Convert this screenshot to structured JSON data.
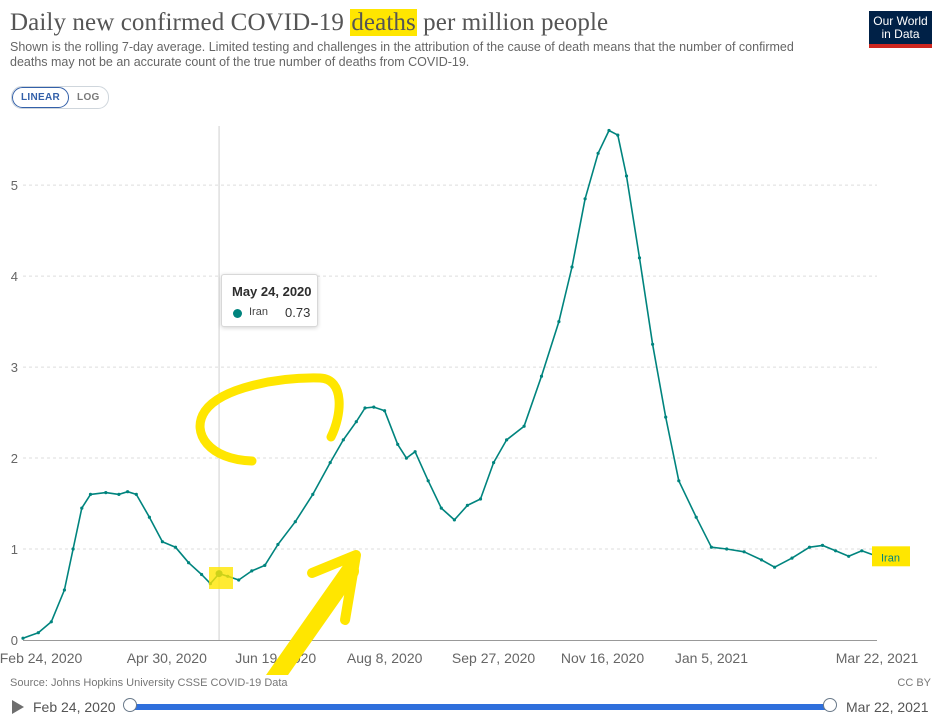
{
  "header": {
    "title_pre": "Daily new confirmed COVID-19",
    "title_highlight": "deaths",
    "title_post": "per million people",
    "subtitle": "Shown is the rolling 7-day average. Limited testing and challenges in the attribution of the cause of death means that the number of confirmed deaths may not be an accurate count of the true number of deaths from COVID-19.",
    "logo_line1": "Our World",
    "logo_line2": "in Data"
  },
  "scale_toggle": {
    "linear": "LINEAR",
    "log": "LOG",
    "active": "linear"
  },
  "tooltip": {
    "date": "May 24, 2020",
    "series": "Iran",
    "value": "0.73"
  },
  "footer": {
    "source": "Source: Johns Hopkins University CSSE COVID-19 Data",
    "license": "CC BY"
  },
  "timeline": {
    "start": "Feb 24, 2020",
    "end": "Mar 22, 2021"
  },
  "colors": {
    "series": "#00847e",
    "highlight": "#ffe600",
    "grid": "#dddddd",
    "timeline": "#2f6fdc"
  },
  "chart_data": {
    "type": "line",
    "title": "Daily new confirmed COVID-19 deaths per million people",
    "subtitle": "Shown is the rolling 7-day average. Limited testing and challenges in the attribution of the cause of death means that the number of confirmed deaths may not be an accurate count of the true number of deaths from COVID-19.",
    "x_ticks": [
      {
        "label": "Feb 24, 2020",
        "date": "2020-02-24"
      },
      {
        "label": "Apr 30, 2020",
        "date": "2020-04-30"
      },
      {
        "label": "Jun 19, 2020",
        "date": "2020-06-19"
      },
      {
        "label": "Aug 8, 2020",
        "date": "2020-08-08"
      },
      {
        "label": "Sep 27, 2020",
        "date": "2020-09-27"
      },
      {
        "label": "Nov 16, 2020",
        "date": "2020-11-16"
      },
      {
        "label": "Jan 5, 2021",
        "date": "2021-01-05"
      },
      {
        "label": "Mar 22, 2021",
        "date": "2021-03-22"
      }
    ],
    "y_ticks": [
      0,
      1,
      2,
      3,
      4,
      5
    ],
    "ylim": [
      0,
      5.65
    ],
    "xlim": [
      "2020-02-24",
      "2021-03-22"
    ],
    "grid": true,
    "hover_date": "2020-05-24",
    "series": [
      {
        "name": "Iran",
        "end_label": "Iran",
        "points": [
          [
            "2020-02-24",
            0.02
          ],
          [
            "2020-03-02",
            0.08
          ],
          [
            "2020-03-08",
            0.2
          ],
          [
            "2020-03-14",
            0.55
          ],
          [
            "2020-03-18",
            1.0
          ],
          [
            "2020-03-22",
            1.45
          ],
          [
            "2020-03-26",
            1.6
          ],
          [
            "2020-04-02",
            1.62
          ],
          [
            "2020-04-08",
            1.6
          ],
          [
            "2020-04-12",
            1.63
          ],
          [
            "2020-04-16",
            1.6
          ],
          [
            "2020-04-22",
            1.35
          ],
          [
            "2020-04-28",
            1.08
          ],
          [
            "2020-05-04",
            1.02
          ],
          [
            "2020-05-10",
            0.85
          ],
          [
            "2020-05-16",
            0.72
          ],
          [
            "2020-05-20",
            0.62
          ],
          [
            "2020-05-24",
            0.73
          ],
          [
            "2020-05-28",
            0.7
          ],
          [
            "2020-06-02",
            0.66
          ],
          [
            "2020-06-08",
            0.76
          ],
          [
            "2020-06-14",
            0.82
          ],
          [
            "2020-06-20",
            1.05
          ],
          [
            "2020-06-28",
            1.3
          ],
          [
            "2020-07-06",
            1.6
          ],
          [
            "2020-07-14",
            1.95
          ],
          [
            "2020-07-20",
            2.2
          ],
          [
            "2020-07-26",
            2.4
          ],
          [
            "2020-07-30",
            2.55
          ],
          [
            "2020-08-03",
            2.56
          ],
          [
            "2020-08-08",
            2.52
          ],
          [
            "2020-08-14",
            2.15
          ],
          [
            "2020-08-18",
            2.0
          ],
          [
            "2020-08-22",
            2.07
          ],
          [
            "2020-08-28",
            1.75
          ],
          [
            "2020-09-03",
            1.45
          ],
          [
            "2020-09-09",
            1.32
          ],
          [
            "2020-09-15",
            1.48
          ],
          [
            "2020-09-21",
            1.55
          ],
          [
            "2020-09-27",
            1.95
          ],
          [
            "2020-10-03",
            2.2
          ],
          [
            "2020-10-11",
            2.35
          ],
          [
            "2020-10-19",
            2.9
          ],
          [
            "2020-10-27",
            3.5
          ],
          [
            "2020-11-02",
            4.1
          ],
          [
            "2020-11-08",
            4.85
          ],
          [
            "2020-11-14",
            5.35
          ],
          [
            "2020-11-19",
            5.6
          ],
          [
            "2020-11-23",
            5.55
          ],
          [
            "2020-11-27",
            5.1
          ],
          [
            "2020-12-03",
            4.2
          ],
          [
            "2020-12-09",
            3.25
          ],
          [
            "2020-12-15",
            2.45
          ],
          [
            "2020-12-21",
            1.75
          ],
          [
            "2020-12-29",
            1.35
          ],
          [
            "2021-01-05",
            1.02
          ],
          [
            "2021-01-12",
            1.0
          ],
          [
            "2021-01-20",
            0.97
          ],
          [
            "2021-01-28",
            0.88
          ],
          [
            "2021-02-03",
            0.8
          ],
          [
            "2021-02-11",
            0.9
          ],
          [
            "2021-02-19",
            1.02
          ],
          [
            "2021-02-25",
            1.04
          ],
          [
            "2021-03-03",
            0.98
          ],
          [
            "2021-03-09",
            0.92
          ],
          [
            "2021-03-15",
            0.98
          ],
          [
            "2021-03-22",
            0.92
          ]
        ]
      }
    ]
  }
}
